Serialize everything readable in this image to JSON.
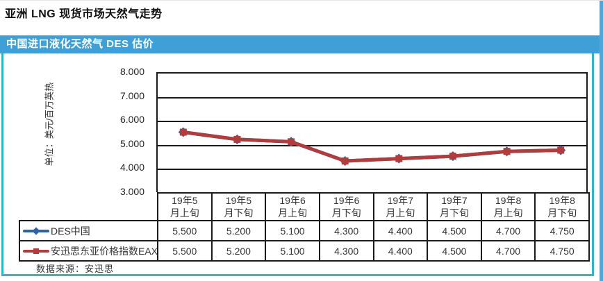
{
  "page": {
    "title": "亚洲 LNG 现货市场天然气走势",
    "source_note": "数据来源：安迅思"
  },
  "chart_header": {
    "label": "中国进口液化天然气 DES 估价"
  },
  "colors": {
    "header_bg": "#3fa0d8",
    "panel_border": "#2cb9c5",
    "page_right_strip": "#4fa6da",
    "grid": "#1a1a1a",
    "series_des_china": "#2f62a7",
    "series_eax": "#b03c3e"
  },
  "chart_data": {
    "type": "line",
    "title": "中国进口液化天然气 DES 估价",
    "xlabel": "",
    "ylabel": "单位：美元/百万英热",
    "ylim": [
      3.0,
      8.0
    ],
    "y_tick_labels": [
      "8.000",
      "7.000",
      "6.000",
      "5.000",
      "4.000",
      "3.000"
    ],
    "grid": "horizontal",
    "legend_position": "data-table-left",
    "categories": [
      "19年5月上旬",
      "19年5月下旬",
      "19年6月上旬",
      "19年6月下旬",
      "19年7月上旬",
      "19年7月下旬",
      "19年8月上旬",
      "19年8月下旬"
    ],
    "category_lines": [
      {
        "line1": "19年5",
        "line2": "月上旬"
      },
      {
        "line1": "19年5",
        "line2": "月下旬"
      },
      {
        "line1": "19年6",
        "line2": "月上旬"
      },
      {
        "line1": "19年6",
        "line2": "月下旬"
      },
      {
        "line1": "19年7",
        "line2": "月上旬"
      },
      {
        "line1": "19年7",
        "line2": "月下旬"
      },
      {
        "line1": "19年8",
        "line2": "月上旬"
      },
      {
        "line1": "19年8",
        "line2": "月下旬"
      }
    ],
    "series": [
      {
        "name": "DES中国",
        "color": "#2f62a7",
        "marker": "diamond",
        "values": [
          5.5,
          5.2,
          5.1,
          4.3,
          4.4,
          4.5,
          4.7,
          4.75
        ],
        "display_values": [
          "5.500",
          "5.200",
          "5.100",
          "4.300",
          "4.400",
          "4.500",
          "4.700",
          "4.750"
        ]
      },
      {
        "name": "安迅思东亚价格指数EAX",
        "color": "#b03c3e",
        "marker": "square",
        "values": [
          5.5,
          5.2,
          5.1,
          4.3,
          4.4,
          4.5,
          4.7,
          4.75
        ],
        "display_values": [
          "5.500",
          "5.200",
          "5.100",
          "4.300",
          "4.400",
          "4.500",
          "4.700",
          "4.750"
        ]
      }
    ]
  }
}
